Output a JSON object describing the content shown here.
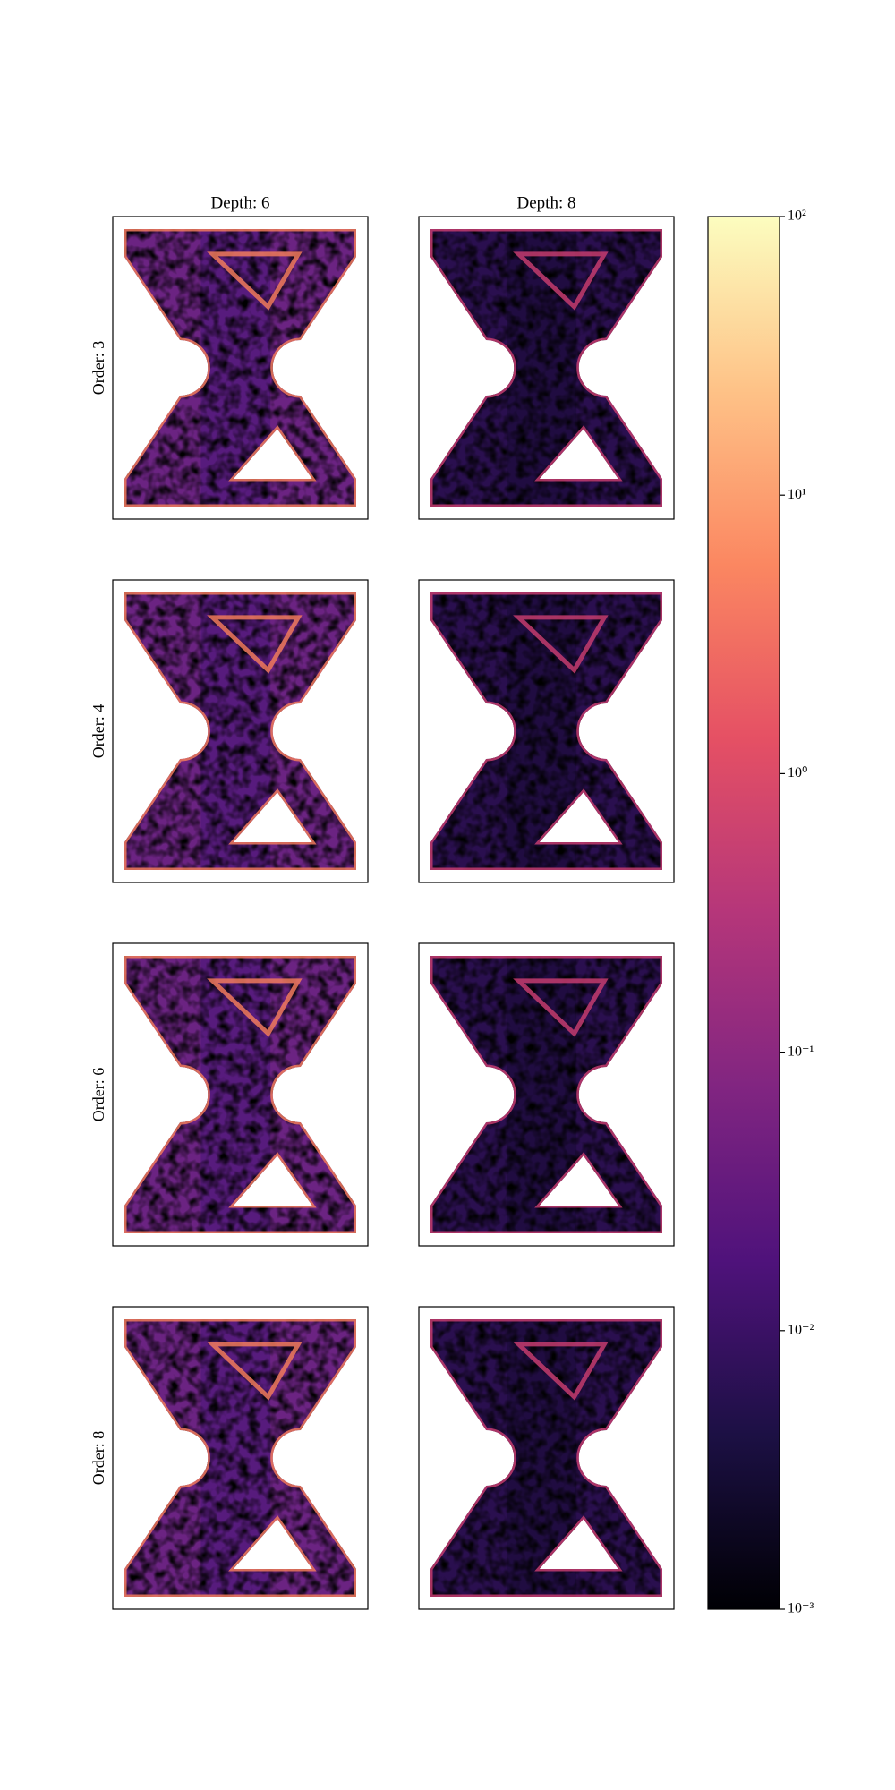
{
  "chart_data": {
    "type": "image-grid",
    "column_titles": [
      "Depth: 6",
      "Depth: 8"
    ],
    "row_labels": [
      "Order: 3",
      "Order: 4",
      "Order: 6",
      "Order: 8"
    ],
    "colormap": "magma",
    "colorbar": {
      "scale": "log",
      "lim": [
        0.001,
        100
      ],
      "ticks": [
        {
          "value": 0.001,
          "label": "10⁻³"
        },
        {
          "value": 0.01,
          "label": "10⁻²"
        },
        {
          "value": 0.1,
          "label": "10⁻¹"
        },
        {
          "value": 1,
          "label": "10⁰"
        },
        {
          "value": 10,
          "label": "10¹"
        },
        {
          "value": 100,
          "label": "10²"
        }
      ]
    }
  }
}
